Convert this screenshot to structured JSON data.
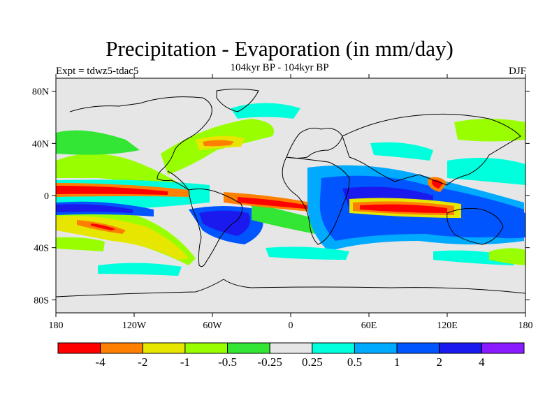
{
  "title": "Precipitation - Evaporation (in mm/day)",
  "subtitle": "104kyr BP - 104kyr BP",
  "left_label": "Expt = tdwz5-tdac5",
  "right_label": "DJF",
  "map": {
    "projection": "cylindrical-equidistant",
    "lon_range": [
      -180,
      180
    ],
    "lat_range": [
      -90,
      90
    ],
    "y_ticks": [
      {
        "lat": 80,
        "label": "80N"
      },
      {
        "lat": 40,
        "label": "40N"
      },
      {
        "lat": 0,
        "label": "0"
      },
      {
        "lat": -40,
        "label": "40S"
      },
      {
        "lat": -80,
        "label": "80S"
      }
    ],
    "x_ticks": [
      {
        "lon": -180,
        "label": "180"
      },
      {
        "lon": -120,
        "label": "120W"
      },
      {
        "lon": -60,
        "label": "60W"
      },
      {
        "lon": 0,
        "label": "0"
      },
      {
        "lon": 60,
        "label": "60E"
      },
      {
        "lon": 120,
        "label": "120E"
      },
      {
        "lon": 180,
        "label": "180"
      }
    ]
  },
  "colorbar": {
    "colors": [
      "#ff0000",
      "#ff8000",
      "#e6e600",
      "#99ff00",
      "#33e633",
      "#e6e6e6",
      "#00ffdd",
      "#00aaff",
      "#0055ff",
      "#1a1aee",
      "#8a1aff"
    ],
    "labels": [
      "-4",
      "-2",
      "-1",
      "-0.5",
      "-0.25",
      "0.25",
      "0.5",
      "1",
      "2",
      "4"
    ]
  }
}
